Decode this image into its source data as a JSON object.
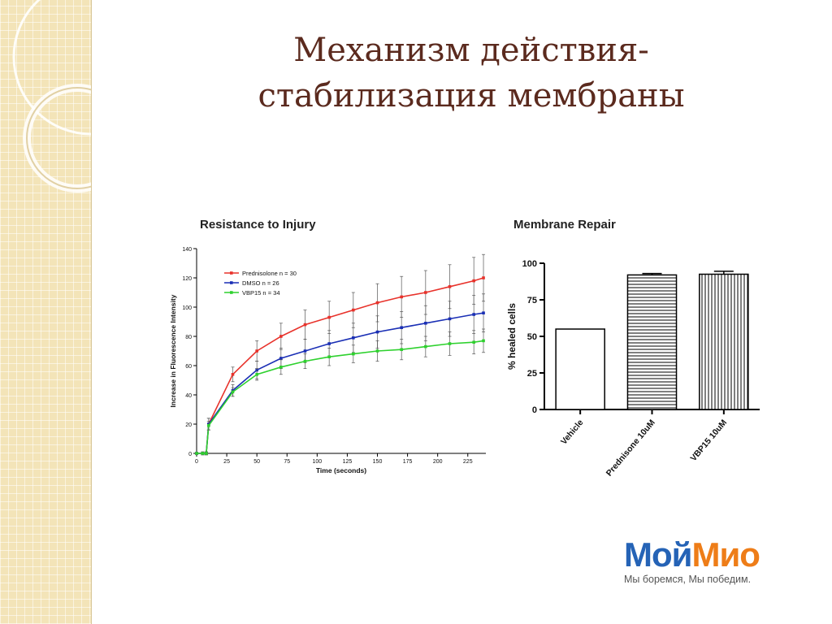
{
  "slide": {
    "title_line1": "Механизм действия-",
    "title_line2": "стабилизация мембраны"
  },
  "logo": {
    "part1": "Мой",
    "part2": "Мио",
    "tagline": "Мы боремся, Мы победим.",
    "colors": {
      "part1": "#2563b6",
      "part2": "#ee7d18"
    }
  },
  "chart_data": [
    {
      "type": "line",
      "title": "Resistance to Injury",
      "xlabel": "Time (seconds)",
      "ylabel": "Increase in Fluorescence Intensity",
      "xlim": [
        0,
        240
      ],
      "ylim": [
        0,
        140
      ],
      "xticks": [
        0,
        25,
        50,
        75,
        100,
        125,
        150,
        175,
        200,
        225
      ],
      "yticks": [
        0,
        20,
        40,
        60,
        80,
        100,
        120,
        140
      ],
      "legend_position": "top-left",
      "grid": false,
      "series": [
        {
          "name": "Prednisolone n = 30",
          "color": "#e8322b",
          "x": [
            0,
            5,
            8,
            10,
            30,
            50,
            70,
            90,
            110,
            130,
            150,
            170,
            190,
            210,
            230,
            238
          ],
          "y": [
            0,
            0,
            0,
            20,
            54,
            70,
            80,
            88,
            93,
            98,
            103,
            107,
            110,
            114,
            118,
            120
          ],
          "err": [
            0,
            1,
            1,
            4,
            5,
            7,
            9,
            10,
            11,
            12,
            13,
            14,
            15,
            15,
            16,
            16
          ]
        },
        {
          "name": "DMSO n = 26",
          "color": "#1a2fb5",
          "x": [
            0,
            5,
            8,
            10,
            30,
            50,
            70,
            90,
            110,
            130,
            150,
            170,
            190,
            210,
            230,
            238
          ],
          "y": [
            0,
            0,
            0,
            20,
            43,
            57,
            65,
            70,
            75,
            79,
            83,
            86,
            89,
            92,
            95,
            96
          ],
          "err": [
            0,
            1,
            1,
            4,
            4,
            6,
            7,
            8,
            9,
            10,
            11,
            11,
            12,
            12,
            13,
            13
          ]
        },
        {
          "name": "VBP15 n = 34",
          "color": "#2ed12e",
          "x": [
            0,
            5,
            8,
            10,
            30,
            50,
            70,
            90,
            110,
            130,
            150,
            170,
            190,
            210,
            230,
            238
          ],
          "y": [
            0,
            0,
            0,
            19,
            42,
            54,
            59,
            63,
            66,
            68,
            70,
            71,
            73,
            75,
            76,
            77
          ],
          "err": [
            0,
            1,
            1,
            3,
            3,
            4,
            5,
            5,
            6,
            6,
            7,
            7,
            7,
            8,
            8,
            8
          ]
        }
      ]
    },
    {
      "type": "bar",
      "title": "Membrane Repair",
      "ylabel": "% healed cells",
      "ylim": [
        0,
        100
      ],
      "yticks": [
        0,
        25,
        50,
        75,
        100
      ],
      "categories": [
        "Vehicle",
        "Prednisone 10uM",
        "VBP15 10uM"
      ],
      "values": [
        55,
        92,
        92.5
      ],
      "errors": [
        0,
        1,
        2
      ],
      "patterns": [
        "none",
        "horizontal",
        "vertical"
      ]
    }
  ]
}
